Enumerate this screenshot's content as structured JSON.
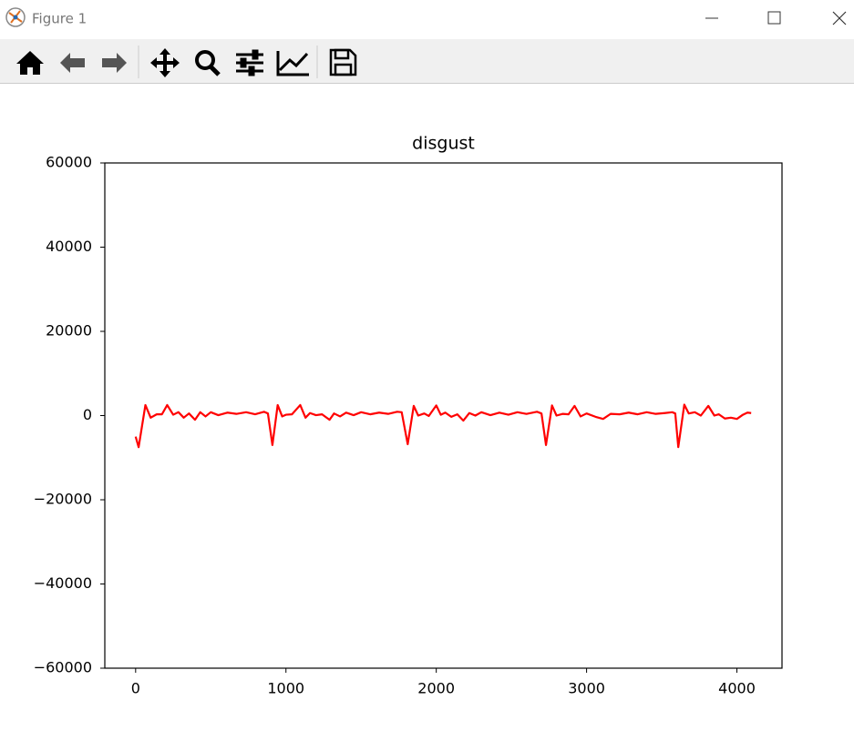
{
  "window": {
    "title": "Figure 1"
  },
  "chart_data": {
    "type": "line",
    "title": "disgust",
    "x": [
      0,
      20,
      65,
      100,
      140,
      175,
      210,
      250,
      285,
      320,
      355,
      395,
      430,
      465,
      500,
      550,
      610,
      670,
      735,
      795,
      855,
      880,
      910,
      945,
      975,
      1000,
      1040,
      1095,
      1130,
      1160,
      1200,
      1240,
      1290,
      1320,
      1360,
      1400,
      1450,
      1500,
      1560,
      1620,
      1680,
      1740,
      1770,
      1810,
      1850,
      1880,
      1920,
      1950,
      2000,
      2030,
      2060,
      2100,
      2140,
      2180,
      2220,
      2260,
      2300,
      2360,
      2420,
      2480,
      2540,
      2600,
      2670,
      2700,
      2730,
      2770,
      2800,
      2840,
      2880,
      2920,
      2960,
      3000,
      3060,
      3110,
      3160,
      3220,
      3280,
      3340,
      3400,
      3460,
      3520,
      3570,
      3590,
      3610,
      3650,
      3680,
      3720,
      3760,
      3810,
      3850,
      3880,
      3920,
      3960,
      4000,
      4040,
      4070,
      4095
    ],
    "series": [
      {
        "name": "disgust",
        "color": "#ff0000",
        "values": [
          -5000,
          -7500,
          2500,
          -500,
          300,
          300,
          2500,
          200,
          800,
          -500,
          500,
          -1000,
          800,
          -200,
          800,
          100,
          700,
          400,
          800,
          300,
          900,
          500,
          -7000,
          2500,
          -200,
          200,
          300,
          2500,
          -500,
          600,
          100,
          300,
          -1000,
          500,
          -200,
          700,
          100,
          800,
          300,
          700,
          400,
          900,
          800,
          -6800,
          2300,
          0,
          500,
          -100,
          2400,
          200,
          700,
          -300,
          300,
          -1200,
          600,
          0,
          800,
          100,
          700,
          200,
          800,
          400,
          900,
          500,
          -7000,
          2400,
          0,
          400,
          300,
          2300,
          -200,
          500,
          -300,
          -800,
          400,
          300,
          700,
          300,
          800,
          400,
          600,
          800,
          500,
          -7500,
          2600,
          500,
          800,
          0,
          2300,
          0,
          300,
          -700,
          -500,
          -800,
          200,
          700,
          600
        ]
      }
    ],
    "xlim": [
      -205,
      4300
    ],
    "xticks": [
      0,
      1000,
      2000,
      3000,
      4000
    ],
    "ylim": [
      -60000,
      60000
    ],
    "yticks": [
      {
        "value": -60000,
        "label": "−60000"
      },
      {
        "value": -40000,
        "label": "−40000"
      },
      {
        "value": -20000,
        "label": "−20000"
      },
      0,
      20000,
      40000,
      60000
    ],
    "grid": false
  }
}
